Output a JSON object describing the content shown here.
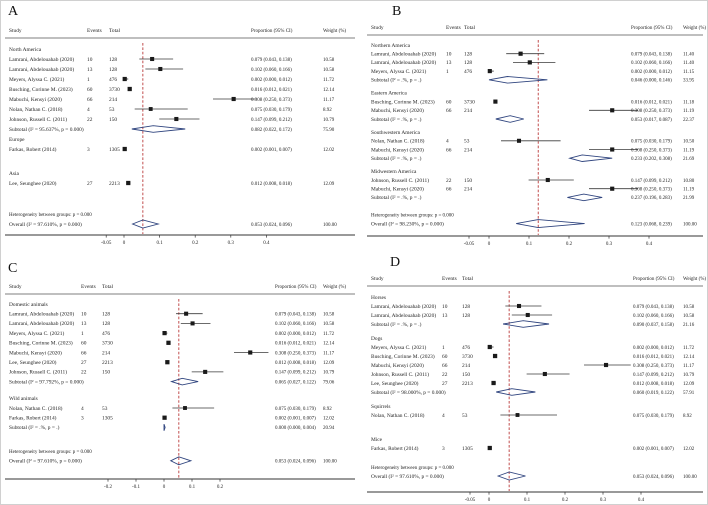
{
  "figure_background": "#ffffff",
  "colors": {
    "diamond_outline": "#30457f",
    "point_marker": "#1a1a1a",
    "ci_line": "#3a3a3a",
    "reference_line": "#b22222",
    "text": "#1f1f1f",
    "rule": "#555555"
  },
  "columns": {
    "study": "Study",
    "events": "Events",
    "total": "Total",
    "proportion": "Proportion (95% CI)",
    "weight": "Weight (%)"
  },
  "chart_data": {
    "type": "forest",
    "panels": [
      {
        "letter": "A",
        "ref": 0.053,
        "ticks": [
          -0.05,
          0,
          0.1,
          0.2,
          0.3,
          0.4
        ],
        "tick_labels": [
          "-0.05",
          "0",
          "0.1",
          "0.2",
          "0.3",
          "0.4"
        ],
        "rows": [
          {
            "t": "sub",
            "label": "North America"
          },
          {
            "t": "s",
            "study": "Lamrani, Abdelouahab (2020)",
            "events": "10",
            "total": "128",
            "est": 0.079,
            "lo": 0.043,
            "hi": 0.138,
            "ci": "0.079 (0.043, 0.138)",
            "weight": "10.58"
          },
          {
            "t": "s",
            "study": "Lamrani, Abdelouahab (2020)",
            "events": "13",
            "total": "128",
            "est": 0.102,
            "lo": 0.06,
            "hi": 0.166,
            "ci": "0.102 (0.060, 0.166)",
            "weight": "10.58"
          },
          {
            "t": "s",
            "study": "Meyers, Alyssa C. (2021)",
            "events": "1",
            "total": "476",
            "est": 0.002,
            "lo": 0.0,
            "hi": 0.012,
            "ci": "0.002 (0.000, 0.012)",
            "weight": "11.72"
          },
          {
            "t": "s",
            "study": "Busching, Corinne M. (2023)",
            "events": "60",
            "total": "3730",
            "est": 0.016,
            "lo": 0.012,
            "hi": 0.021,
            "ci": "0.016 (0.012, 0.021)",
            "weight": "12.14"
          },
          {
            "t": "s",
            "study": "Mabuchi, Kensyi (2020)",
            "events": "66",
            "total": "214",
            "est": 0.308,
            "lo": 0.25,
            "hi": 0.373,
            "ci": "0.308 (0.250, 0.373)",
            "weight": "11.17"
          },
          {
            "t": "s",
            "study": "Nolan, Nathan C. (2018)",
            "events": "4",
            "total": "53",
            "est": 0.075,
            "lo": 0.03,
            "hi": 0.179,
            "ci": "0.075 (0.030, 0.179)",
            "weight": "8.92"
          },
          {
            "t": "s",
            "study": "Johnson, Russell C. (2011)",
            "events": "22",
            "total": "150",
            "est": 0.147,
            "lo": 0.099,
            "hi": 0.212,
            "ci": "0.147 (0.099, 0.212)",
            "weight": "10.79"
          },
          {
            "t": "d",
            "study": "Subtotal (I² = 95.637%, p = 0.000)",
            "est": 0.082,
            "lo": 0.022,
            "hi": 0.172,
            "ci": "0.082 (0.022, 0.172)",
            "weight": "75.90"
          },
          {
            "t": "sub",
            "label": "Europe"
          },
          {
            "t": "s",
            "study": "Farkas, Robert (2014)",
            "events": "3",
            "total": "1305",
            "est": 0.002,
            "lo": 0.001,
            "hi": 0.007,
            "ci": "0.002 (0.001, 0.007)",
            "weight": "12.02"
          },
          {
            "t": "g"
          },
          {
            "t": "g"
          },
          {
            "t": "sub",
            "label": "Asia"
          },
          {
            "t": "s",
            "study": "Lee, Seunghee (2020)",
            "events": "27",
            "total": "2213",
            "est": 0.012,
            "lo": 0.008,
            "hi": 0.018,
            "ci": "0.012 (0.008, 0.018)",
            "weight": "12.09"
          },
          {
            "t": "g"
          },
          {
            "t": "g"
          },
          {
            "t": "g"
          },
          {
            "t": "note",
            "label": "Heterogeneity between groups: p = 0.000"
          },
          {
            "t": "o",
            "study": "Overall  (I² = 97.610%, p = 0.000)",
            "est": 0.053,
            "lo": 0.024,
            "hi": 0.096,
            "ci": "0.053 (0.024, 0.096)",
            "weight": "100.00"
          }
        ]
      },
      {
        "letter": "B",
        "ref": 0.123,
        "ticks": [
          -0.05,
          0,
          0.1,
          0.2,
          0.3,
          0.4
        ],
        "tick_labels": [
          "-0.05",
          "0",
          "0.1",
          "0.2",
          "0.3",
          "0.4"
        ],
        "rows": [
          {
            "t": "sub",
            "label": "Northern America"
          },
          {
            "t": "s",
            "study": "Lamrani, Abdelouahab (2020)",
            "events": "10",
            "total": "128",
            "est": 0.079,
            "lo": 0.043,
            "hi": 0.138,
            "ci": "0.079 (0.043, 0.138)",
            "weight": "11.40"
          },
          {
            "t": "s",
            "study": "Lamrani, Abdelouahab (2020)",
            "events": "13",
            "total": "128",
            "est": 0.102,
            "lo": 0.06,
            "hi": 0.166,
            "ci": "0.102 (0.060, 0.166)",
            "weight": "11.40"
          },
          {
            "t": "s",
            "study": "Meyers, Alyssa C. (2021)",
            "events": "1",
            "total": "476",
            "est": 0.002,
            "lo": 0.0,
            "hi": 0.012,
            "ci": "0.002 (0.000, 0.012)",
            "weight": "11.15"
          },
          {
            "t": "d",
            "study": "Subtotal (I² = .%, p = .)",
            "est": 0.046,
            "lo": 0.0,
            "hi": 0.146,
            "ci": "0.046 (0.000, 0.146)",
            "weight": "33.95"
          },
          {
            "t": "g"
          },
          {
            "t": "sub",
            "label": "Eastern America"
          },
          {
            "t": "s",
            "study": "Busching, Corinne M. (2023)",
            "events": "60",
            "total": "3730",
            "est": 0.016,
            "lo": 0.012,
            "hi": 0.021,
            "ci": "0.016 (0.012, 0.021)",
            "weight": "11.18"
          },
          {
            "t": "s",
            "study": "Mabuchi, Kensyi (2020)",
            "events": "66",
            "total": "214",
            "est": 0.308,
            "lo": 0.25,
            "hi": 0.373,
            "ci": "0.308 (0.250, 0.373)",
            "weight": "11.19"
          },
          {
            "t": "d",
            "study": "Subtotal (I² = .%, p = .)",
            "est": 0.053,
            "lo": 0.017,
            "hi": 0.087,
            "ci": "0.053 (0.017, 0.087)",
            "weight": "22.37"
          },
          {
            "t": "g"
          },
          {
            "t": "sub",
            "label": "Southwestern America"
          },
          {
            "t": "s",
            "study": "Nolan, Nathan C. (2018)",
            "events": "4",
            "total": "53",
            "est": 0.075,
            "lo": 0.03,
            "hi": 0.179,
            "ci": "0.075 (0.030, 0.179)",
            "weight": "10.50"
          },
          {
            "t": "s",
            "study": "Mabuchi, Kensyi (2020)",
            "events": "66",
            "total": "214",
            "est": 0.308,
            "lo": 0.25,
            "hi": 0.373,
            "ci": "0.308 (0.250, 0.373)",
            "weight": "11.19"
          },
          {
            "t": "d",
            "study": "Subtotal (I² = .%, p = .)",
            "est": 0.233,
            "lo": 0.202,
            "hi": 0.308,
            "ci": "0.233 (0.202, 0.308)",
            "weight": "21.69"
          },
          {
            "t": "g"
          },
          {
            "t": "sub",
            "label": "Midwestern America"
          },
          {
            "t": "s",
            "study": "Johnson, Russell C. (2011)",
            "events": "22",
            "total": "150",
            "est": 0.147,
            "lo": 0.099,
            "hi": 0.212,
            "ci": "0.147 (0.099, 0.212)",
            "weight": "10.80"
          },
          {
            "t": "s",
            "study": "Mabuchi, Kensyi (2020)",
            "events": "66",
            "total": "214",
            "est": 0.308,
            "lo": 0.25,
            "hi": 0.373,
            "ci": "0.308 (0.250, 0.373)",
            "weight": "11.19"
          },
          {
            "t": "d",
            "study": "Subtotal (I² = .%, p = .)",
            "est": 0.237,
            "lo": 0.196,
            "hi": 0.283,
            "ci": "0.237 (0.196, 0.283)",
            "weight": "21.99"
          },
          {
            "t": "g"
          },
          {
            "t": "g"
          },
          {
            "t": "note",
            "label": "Heterogeneity between groups: p = 0.000"
          },
          {
            "t": "o",
            "study": "Overall  (I² = 98.230%, p = 0.000)",
            "est": 0.123,
            "lo": 0.068,
            "hi": 0.239,
            "ci": "0.123 (0.068, 0.239)",
            "weight": "100.00"
          }
        ]
      },
      {
        "letter": "C",
        "ref": 0.053,
        "ticks": [
          -0.2,
          -0.1,
          0,
          0.1,
          0.2
        ],
        "tick_labels": [
          "-0.2",
          "-0.1",
          "0",
          "0.1",
          "0.2"
        ],
        "rows": [
          {
            "t": "sub",
            "label": "Domestic animals"
          },
          {
            "t": "s",
            "study": "Lamrani, Abdelouahab (2020)",
            "events": "10",
            "total": "128",
            "est": 0.079,
            "lo": 0.043,
            "hi": 0.138,
            "ci": "0.079 (0.043, 0.138)",
            "weight": "10.58"
          },
          {
            "t": "s",
            "study": "Lamrani, Abdelouahab (2020)",
            "events": "13",
            "total": "128",
            "est": 0.102,
            "lo": 0.06,
            "hi": 0.166,
            "ci": "0.102 (0.060, 0.166)",
            "weight": "10.58"
          },
          {
            "t": "s",
            "study": "Meyers, Alyssa C. (2021)",
            "events": "1",
            "total": "476",
            "est": 0.002,
            "lo": 0.0,
            "hi": 0.012,
            "ci": "0.002 (0.000, 0.012)",
            "weight": "11.72"
          },
          {
            "t": "s",
            "study": "Busching, Corinne M. (2023)",
            "events": "60",
            "total": "3730",
            "est": 0.016,
            "lo": 0.012,
            "hi": 0.021,
            "ci": "0.016 (0.012, 0.021)",
            "weight": "12.14"
          },
          {
            "t": "s",
            "study": "Mabuchi, Kensyi (2020)",
            "events": "66",
            "total": "214",
            "est": 0.308,
            "lo": 0.25,
            "hi": 0.373,
            "ci": "0.308 (0.250, 0.373)",
            "weight": "11.17"
          },
          {
            "t": "s",
            "study": "Lee, Seunghee (2020)",
            "events": "27",
            "total": "2213",
            "est": 0.012,
            "lo": 0.008,
            "hi": 0.018,
            "ci": "0.012 (0.008, 0.018)",
            "weight": "12.09"
          },
          {
            "t": "s",
            "study": "Johnson, Russell C. (2011)",
            "events": "22",
            "total": "150",
            "est": 0.147,
            "lo": 0.099,
            "hi": 0.212,
            "ci": "0.147 (0.099, 0.212)",
            "weight": "10.79"
          },
          {
            "t": "d",
            "study": "Subtotal (I² = 97.792%, p = 0.000)",
            "est": 0.065,
            "lo": 0.027,
            "hi": 0.122,
            "ci": "0.065 (0.027, 0.122)",
            "weight": "79.06"
          },
          {
            "t": "g"
          },
          {
            "t": "sub",
            "label": "Wild animals"
          },
          {
            "t": "s",
            "study": "Nolan, Nathan C. (2018)",
            "events": "4",
            "total": "53",
            "est": 0.075,
            "lo": 0.03,
            "hi": 0.179,
            "ci": "0.075 (0.030, 0.179)",
            "weight": "8.92"
          },
          {
            "t": "s",
            "study": "Farkas, Robert (2014)",
            "events": "3",
            "total": "1305",
            "est": 0.002,
            "lo": 0.001,
            "hi": 0.007,
            "ci": "0.002 (0.001, 0.007)",
            "weight": "12.02"
          },
          {
            "t": "d",
            "study": "Subtotal (I² = .%, p = .)",
            "est": 0.0,
            "lo": 0.0,
            "hi": 0.004,
            "ci": "0.000 (0.000, 0.004)",
            "weight": "20.94"
          },
          {
            "t": "g"
          },
          {
            "t": "g"
          },
          {
            "t": "note",
            "label": "Heterogeneity between groups: p = 0.000"
          },
          {
            "t": "o",
            "study": "Overall  (I² = 97.610%, p = 0.000)",
            "est": 0.053,
            "lo": 0.024,
            "hi": 0.096,
            "ci": "0.053 (0.024, 0.096)",
            "weight": "100.00"
          }
        ]
      },
      {
        "letter": "D",
        "ref": 0.053,
        "ticks": [
          -0.05,
          0,
          0.1,
          0.2,
          0.3,
          0.4
        ],
        "tick_labels": [
          "-0.05",
          "0",
          "0.1",
          "0.2",
          "0.3",
          "0.4"
        ],
        "rows": [
          {
            "t": "sub",
            "label": "Horses"
          },
          {
            "t": "s",
            "study": "Lamrani, Abdelouahab (2020)",
            "events": "10",
            "total": "128",
            "est": 0.079,
            "lo": 0.043,
            "hi": 0.138,
            "ci": "0.079 (0.043, 0.138)",
            "weight": "10.58"
          },
          {
            "t": "s",
            "study": "Lamrani, Abdelouahab (2020)",
            "events": "13",
            "total": "128",
            "est": 0.102,
            "lo": 0.06,
            "hi": 0.166,
            "ci": "0.102 (0.060, 0.166)",
            "weight": "10.58"
          },
          {
            "t": "d",
            "study": "Subtotal (I² = .%, p = .)",
            "est": 0.09,
            "lo": 0.037,
            "hi": 0.158,
            "ci": "0.090 (0.037, 0.158)",
            "weight": "21.16"
          },
          {
            "t": "g"
          },
          {
            "t": "sub",
            "label": "Dogs"
          },
          {
            "t": "s",
            "study": "Meyers, Alyssa C. (2021)",
            "events": "1",
            "total": "476",
            "est": 0.002,
            "lo": 0.0,
            "hi": 0.012,
            "ci": "0.002 (0.000, 0.012)",
            "weight": "11.72"
          },
          {
            "t": "s",
            "study": "Busching, Corinne M. (2023)",
            "events": "60",
            "total": "3730",
            "est": 0.016,
            "lo": 0.012,
            "hi": 0.021,
            "ci": "0.016 (0.012, 0.021)",
            "weight": "12.14"
          },
          {
            "t": "s",
            "study": "Mabuchi, Kensyi (2020)",
            "events": "66",
            "total": "214",
            "est": 0.308,
            "lo": 0.25,
            "hi": 0.373,
            "ci": "0.308 (0.250, 0.373)",
            "weight": "11.17"
          },
          {
            "t": "s",
            "study": "Johnson, Russell C. (2011)",
            "events": "22",
            "total": "150",
            "est": 0.147,
            "lo": 0.099,
            "hi": 0.212,
            "ci": "0.147 (0.099, 0.212)",
            "weight": "10.79"
          },
          {
            "t": "s",
            "study": "Lee, Seunghee (2020)",
            "events": "27",
            "total": "2213",
            "est": 0.012,
            "lo": 0.008,
            "hi": 0.018,
            "ci": "0.012 (0.008, 0.018)",
            "weight": "12.09"
          },
          {
            "t": "d",
            "study": "Subtotal (I² = 98.000%, p = 0.000)",
            "est": 0.06,
            "lo": 0.019,
            "hi": 0.122,
            "ci": "0.060 (0.019, 0.122)",
            "weight": "57.91"
          },
          {
            "t": "g"
          },
          {
            "t": "sub",
            "label": "Squirrels"
          },
          {
            "t": "s",
            "study": "Nolan, Nathan C. (2018)",
            "events": "4",
            "total": "53",
            "est": 0.075,
            "lo": 0.03,
            "hi": 0.179,
            "ci": "0.075 (0.030, 0.179)",
            "weight": "8.92"
          },
          {
            "t": "g"
          },
          {
            "t": "g"
          },
          {
            "t": "g"
          },
          {
            "t": "sub",
            "label": "Mice"
          },
          {
            "t": "s",
            "study": "Farkas, Robert (2014)",
            "events": "3",
            "total": "1305",
            "est": 0.002,
            "lo": 0.001,
            "hi": 0.007,
            "ci": "0.002 (0.001, 0.007)",
            "weight": "12.02"
          },
          {
            "t": "g"
          },
          {
            "t": "g"
          },
          {
            "t": "note",
            "label": "Heterogeneity between groups: p = 0.000"
          },
          {
            "t": "o",
            "study": "Overall  (I² = 97.610%, p = 0.000)",
            "est": 0.053,
            "lo": 0.024,
            "hi": 0.096,
            "ci": "0.053 (0.024, 0.096)",
            "weight": "100.00"
          }
        ]
      }
    ]
  }
}
